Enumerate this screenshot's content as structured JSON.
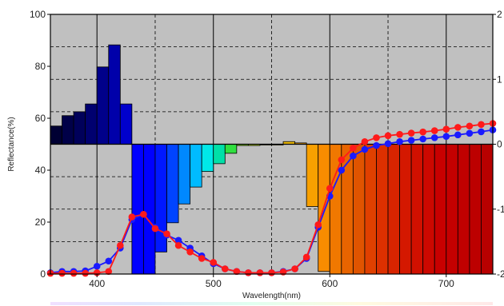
{
  "chart_data": {
    "type": "bar",
    "title": "",
    "xlabel": "Wavelength(nm)",
    "ylabel": "Reflectance(%)",
    "xlim": [
      360,
      740
    ],
    "ylim": [
      0,
      100
    ],
    "y2lim": [
      -2,
      2
    ],
    "x_ticks": [
      400,
      500,
      600,
      700
    ],
    "y_ticks": [
      0,
      20,
      40,
      60,
      80,
      100
    ],
    "y2_ticks": [
      -2,
      -1,
      0,
      1,
      2
    ],
    "grid": true,
    "plot_background": "#c0c0c0",
    "bars": {
      "axis": "right",
      "bin_width_nm": 10,
      "x": [
        360,
        370,
        380,
        390,
        400,
        410,
        420,
        430,
        440,
        450,
        460,
        470,
        480,
        490,
        500,
        510,
        520,
        530,
        540,
        550,
        560,
        570,
        580,
        590,
        600,
        610,
        620,
        630,
        640,
        650,
        660,
        670,
        680,
        690,
        700,
        710,
        720,
        730
      ],
      "values": [
        0.28,
        0.44,
        0.5,
        0.62,
        1.19,
        1.53,
        0.62,
        -2.0,
        -2.0,
        -1.66,
        -1.21,
        -0.92,
        -0.66,
        -0.42,
        -0.3,
        -0.14,
        -0.02,
        -0.02,
        0.0,
        0.0,
        0.04,
        0.02,
        -0.96,
        -1.96,
        -2.0,
        -2.0,
        -2.0,
        -2.0,
        -2.0,
        -2.0,
        -2.0,
        -2.0,
        -2.0,
        -2.0,
        -2.0,
        -2.0,
        -2.0,
        -2.0
      ],
      "colors": [
        "#000033",
        "#000048",
        "#00005a",
        "#000070",
        "#00008a",
        "#0000aa",
        "#0000cc",
        "#0000ff",
        "#0000ff",
        "#0018ff",
        "#0044ff",
        "#0088ff",
        "#00bbff",
        "#00e8e8",
        "#00e0a8",
        "#30e040",
        "#80e000",
        "#b8e000",
        "#e0e000",
        "#f0d800",
        "#f5c000",
        "#f8a800",
        "#f8a000",
        "#f88c00",
        "#f07800",
        "#e86400",
        "#e05400",
        "#e04000",
        "#dc3000",
        "#d82400",
        "#d41800",
        "#d01000",
        "#cc0800",
        "#c80000",
        "#c40000",
        "#c00000",
        "#bc0000",
        "#b80000"
      ]
    },
    "series": [
      {
        "color": "#1a1aff",
        "x": [
          360,
          370,
          380,
          390,
          400,
          410,
          420,
          430,
          440,
          450,
          460,
          470,
          480,
          490,
          500,
          510,
          520,
          530,
          540,
          550,
          560,
          570,
          580,
          590,
          600,
          610,
          620,
          630,
          640,
          650,
          660,
          670,
          680,
          690,
          700,
          710,
          720,
          730,
          740
        ],
        "values": [
          0.5,
          1.0,
          1.0,
          1.2,
          3.0,
          5.0,
          10.0,
          21.0,
          23.0,
          18.0,
          15.0,
          13.0,
          10.0,
          7.0,
          4.0,
          2.0,
          1.0,
          0.5,
          0.5,
          0.5,
          1.0,
          2.0,
          6.0,
          18.0,
          30.0,
          40.0,
          45.5,
          48.0,
          49.5,
          50.2,
          51.0,
          51.5,
          52.0,
          52.5,
          53.0,
          53.6,
          54.2,
          54.8,
          55.5
        ]
      },
      {
        "color": "#ff1a1a",
        "x": [
          360,
          370,
          380,
          390,
          400,
          410,
          420,
          430,
          440,
          450,
          460,
          470,
          480,
          490,
          500,
          510,
          520,
          530,
          540,
          550,
          560,
          570,
          580,
          590,
          600,
          610,
          620,
          630,
          640,
          650,
          660,
          670,
          680,
          690,
          700,
          710,
          720,
          730,
          740
        ],
        "values": [
          0.3,
          0.3,
          0.3,
          0.3,
          0.5,
          1.0,
          11.0,
          22.0,
          23.0,
          17.5,
          15.5,
          11.0,
          8.5,
          6.0,
          4.5,
          2.0,
          1.0,
          0.5,
          0.5,
          0.5,
          0.8,
          2.0,
          6.5,
          19.0,
          33.0,
          44.0,
          48.5,
          51.0,
          52.5,
          53.3,
          53.8,
          54.3,
          54.7,
          55.2,
          55.8,
          56.5,
          57.0,
          57.6,
          58.0
        ]
      }
    ]
  }
}
